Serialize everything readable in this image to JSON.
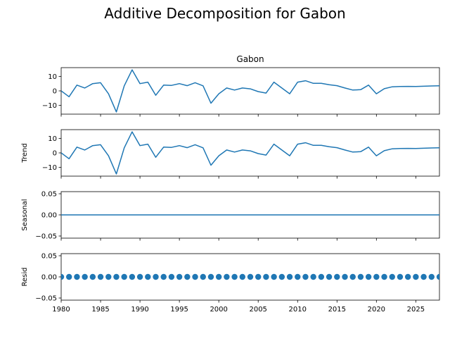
{
  "suptitle": "Additive Decomposition for Gabon",
  "colors": {
    "line": "#1f77b4",
    "marker": "#1f77b4",
    "axes": "#000000",
    "background": "#ffffff"
  },
  "chart_data": [
    {
      "type": "line",
      "title": "Gabon",
      "ylabel": "",
      "xlim": [
        1980,
        2028
      ],
      "ylim": [
        -16,
        16
      ],
      "yticks": [
        -10,
        0,
        10
      ],
      "series": [
        {
          "x": [
            1980,
            1981,
            1982,
            1983,
            1984,
            1985,
            1986,
            1987,
            1988,
            1989,
            1990,
            1991,
            1992,
            1993,
            1994,
            1995,
            1996,
            1997,
            1998,
            1999,
            2000,
            2001,
            2002,
            2003,
            2004,
            2005,
            2006,
            2007,
            2008,
            2009,
            2010,
            2011,
            2012,
            2013,
            2014,
            2015,
            2016,
            2017,
            2018,
            2019,
            2020,
            2021,
            2022,
            2023,
            2024,
            2025,
            2026,
            2027,
            2028
          ],
          "values": [
            0,
            -4,
            4,
            2,
            5,
            5.6,
            -2,
            -14.5,
            3.5,
            14.5,
            5,
            6,
            -3,
            4,
            3.8,
            5,
            3.6,
            5.6,
            3.5,
            -8.5,
            -2,
            2,
            0.6,
            2,
            1.4,
            -0.5,
            -1.5,
            6,
            2,
            -2,
            6,
            7,
            5.2,
            5.2,
            4.2,
            3.6,
            2,
            0.6,
            0.8,
            4,
            -2,
            1.5,
            2.8,
            3,
            3.1,
            3,
            3.2,
            3.4,
            3.5
          ]
        }
      ]
    },
    {
      "type": "line",
      "title": "",
      "ylabel": "Trend",
      "xlim": [
        1980,
        2028
      ],
      "ylim": [
        -16,
        16
      ],
      "yticks": [
        -10,
        0,
        10
      ],
      "series": [
        {
          "x": [
            1980,
            1981,
            1982,
            1983,
            1984,
            1985,
            1986,
            1987,
            1988,
            1989,
            1990,
            1991,
            1992,
            1993,
            1994,
            1995,
            1996,
            1997,
            1998,
            1999,
            2000,
            2001,
            2002,
            2003,
            2004,
            2005,
            2006,
            2007,
            2008,
            2009,
            2010,
            2011,
            2012,
            2013,
            2014,
            2015,
            2016,
            2017,
            2018,
            2019,
            2020,
            2021,
            2022,
            2023,
            2024,
            2025,
            2026,
            2027,
            2028
          ],
          "values": [
            0,
            -4,
            4,
            2,
            5,
            5.6,
            -2,
            -14.5,
            3.5,
            14.5,
            5,
            6,
            -3,
            4,
            3.8,
            5,
            3.6,
            5.6,
            3.5,
            -8.5,
            -2,
            2,
            0.6,
            2,
            1.4,
            -0.5,
            -1.5,
            6,
            2,
            -2,
            6,
            7,
            5.2,
            5.2,
            4.2,
            3.6,
            2,
            0.6,
            0.8,
            4,
            -2,
            1.5,
            2.8,
            3,
            3.1,
            3,
            3.2,
            3.4,
            3.5
          ]
        }
      ]
    },
    {
      "type": "line",
      "title": "",
      "ylabel": "Seasonal",
      "xlim": [
        1980,
        2028
      ],
      "ylim": [
        -0.055,
        0.055
      ],
      "yticks": [
        "-0.05",
        "0.00",
        "0.05"
      ],
      "series": [
        {
          "x": [
            1980,
            2028
          ],
          "values": [
            0,
            0
          ]
        }
      ]
    },
    {
      "type": "scatter",
      "title": "",
      "ylabel": "Resid",
      "xlim": [
        1980,
        2028
      ],
      "ylim": [
        -0.055,
        0.055
      ],
      "yticks": [
        "-0.05",
        "0.00",
        "0.05"
      ],
      "xticks": [
        1980,
        1985,
        1990,
        1995,
        2000,
        2005,
        2010,
        2015,
        2020,
        2025
      ],
      "series": [
        {
          "x": [
            1980,
            1981,
            1982,
            1983,
            1984,
            1985,
            1986,
            1987,
            1988,
            1989,
            1990,
            1991,
            1992,
            1993,
            1994,
            1995,
            1996,
            1997,
            1998,
            1999,
            2000,
            2001,
            2002,
            2003,
            2004,
            2005,
            2006,
            2007,
            2008,
            2009,
            2010,
            2011,
            2012,
            2013,
            2014,
            2015,
            2016,
            2017,
            2018,
            2019,
            2020,
            2021,
            2022,
            2023,
            2024,
            2025,
            2026,
            2027,
            2028
          ],
          "values": [
            0,
            0,
            0,
            0,
            0,
            0,
            0,
            0,
            0,
            0,
            0,
            0,
            0,
            0,
            0,
            0,
            0,
            0,
            0,
            0,
            0,
            0,
            0,
            0,
            0,
            0,
            0,
            0,
            0,
            0,
            0,
            0,
            0,
            0,
            0,
            0,
            0,
            0,
            0,
            0,
            0,
            0,
            0,
            0,
            0,
            0,
            0,
            0,
            0
          ]
        }
      ]
    }
  ]
}
